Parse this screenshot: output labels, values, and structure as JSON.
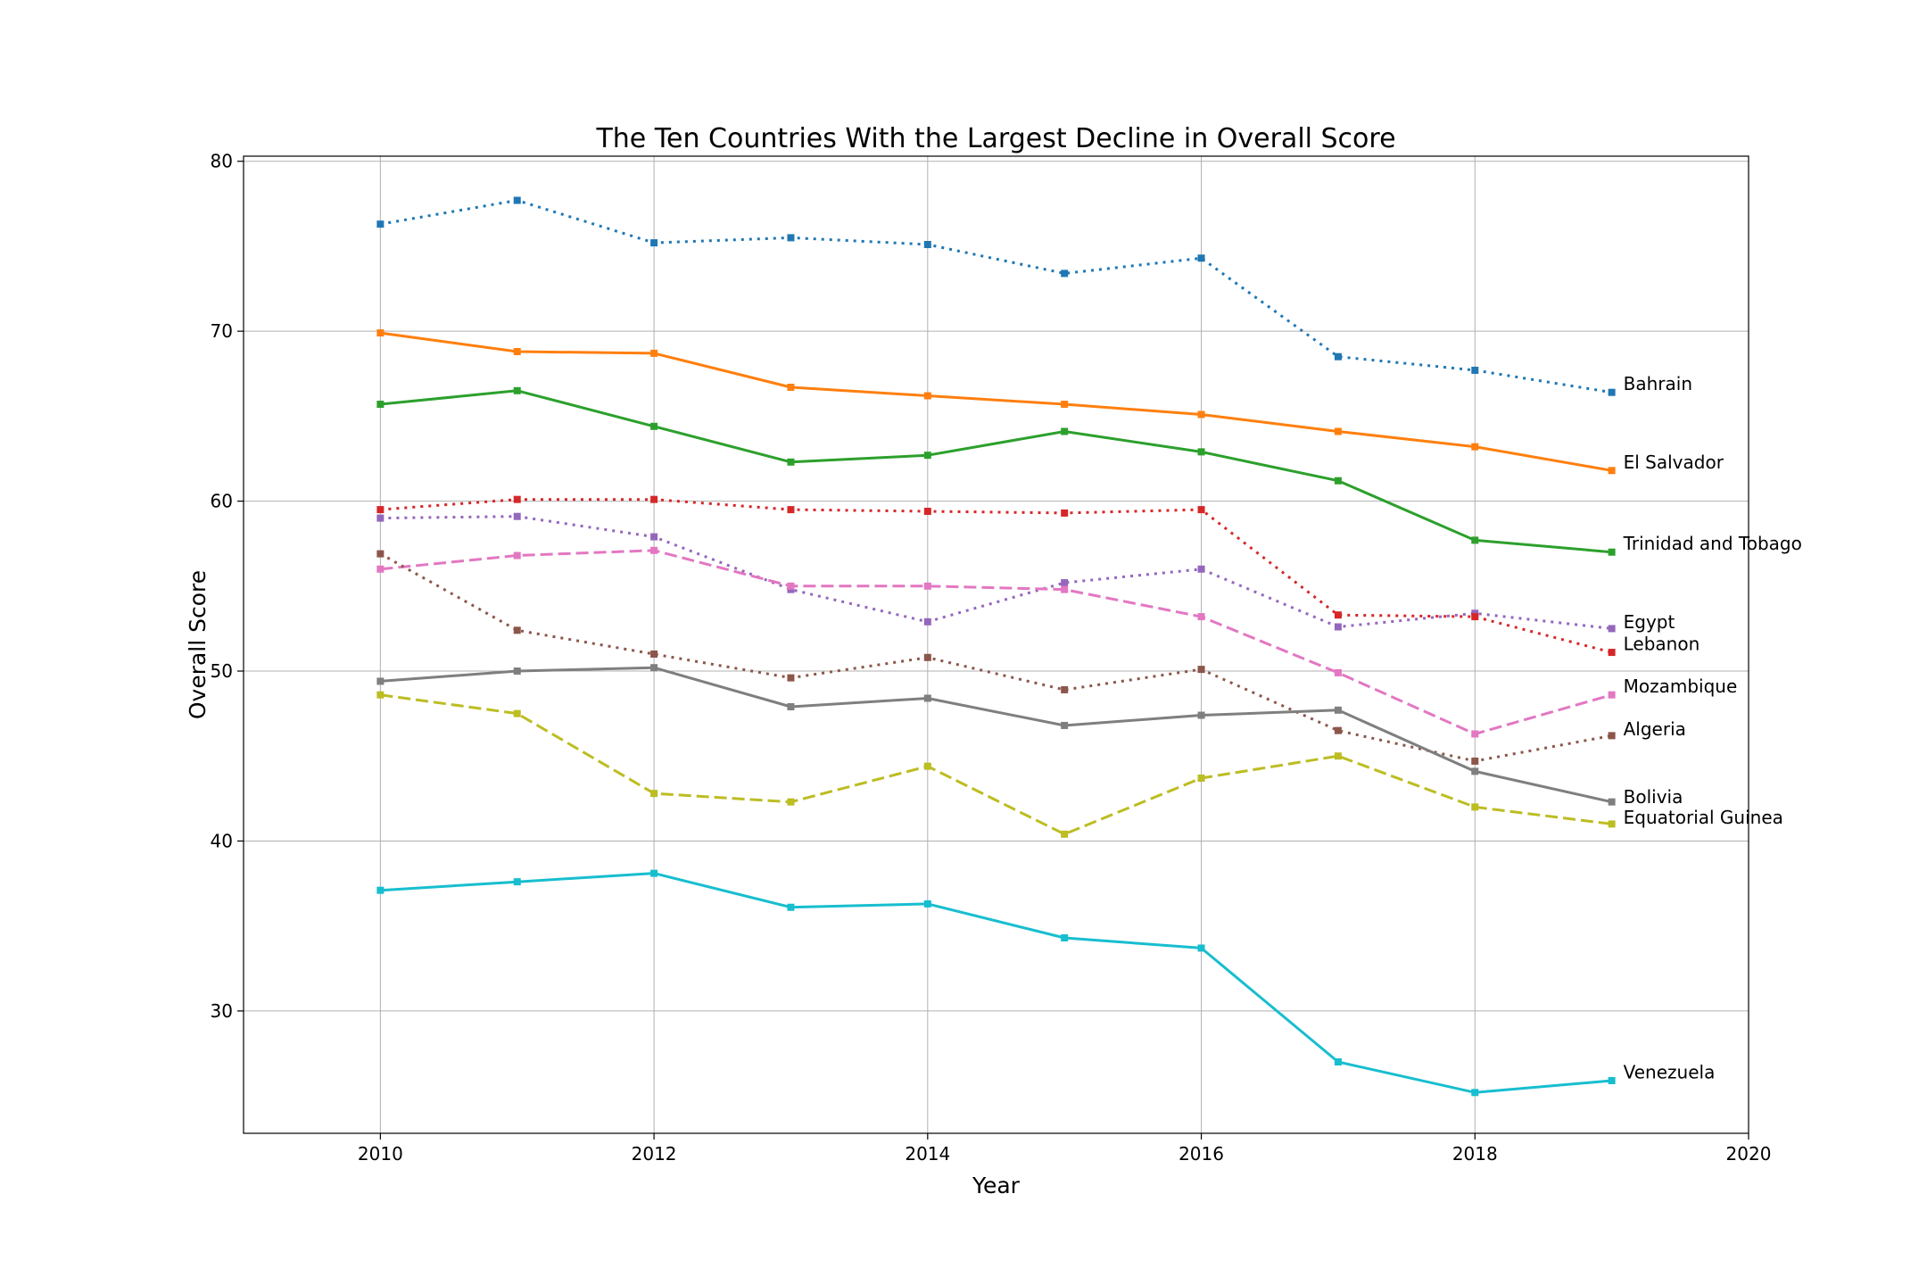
{
  "chart_data": {
    "type": "line",
    "title": "The Ten Countries With the Largest Decline in Overall Score",
    "xlabel": "Year",
    "ylabel": "Overall Score",
    "xlim": [
      2009,
      2020
    ],
    "ylim": [
      22.8,
      80.3
    ],
    "xticks": [
      2010,
      2012,
      2014,
      2016,
      2018,
      2020
    ],
    "yticks": [
      30,
      40,
      50,
      60,
      70,
      80
    ],
    "grid": true,
    "legend": "end-of-line labels",
    "x": [
      2010,
      2011,
      2012,
      2013,
      2014,
      2015,
      2016,
      2017,
      2018,
      2019
    ],
    "series": [
      {
        "name": "Bahrain",
        "color": "#1f77b4",
        "style": "dotted",
        "values": [
          76.3,
          77.7,
          75.2,
          75.5,
          75.1,
          73.4,
          74.3,
          68.5,
          67.7,
          66.4
        ],
        "label_y": 66.9
      },
      {
        "name": "El Salvador",
        "color": "#ff7f0e",
        "style": "solid",
        "values": [
          69.9,
          68.8,
          68.7,
          66.7,
          66.2,
          65.7,
          65.1,
          64.1,
          63.2,
          61.8
        ],
        "label_y": 62.3
      },
      {
        "name": "Trinidad and Tobago",
        "color": "#2ca02c",
        "style": "solid",
        "values": [
          65.7,
          66.5,
          64.4,
          62.3,
          62.7,
          64.1,
          62.9,
          61.2,
          57.7,
          57.0
        ],
        "label_y": 57.5
      },
      {
        "name": "Egypt",
        "color": "#9467bd",
        "style": "dotted",
        "values": [
          59.0,
          59.1,
          57.9,
          54.8,
          52.9,
          55.2,
          56.0,
          52.6,
          53.4,
          52.5
        ],
        "label_y": 52.9
      },
      {
        "name": "Lebanon",
        "color": "#d62728",
        "style": "dotted",
        "values": [
          59.5,
          60.1,
          60.1,
          59.5,
          59.4,
          59.3,
          59.5,
          53.3,
          53.2,
          51.1
        ],
        "label_y": 51.6
      },
      {
        "name": "Mozambique",
        "color": "#e377c2",
        "style": "dashed",
        "values": [
          56.0,
          56.8,
          57.1,
          55.0,
          55.0,
          54.8,
          53.2,
          49.9,
          46.3,
          48.6
        ],
        "label_y": 49.1
      },
      {
        "name": "Algeria",
        "color": "#8c564b",
        "style": "dotted",
        "values": [
          56.9,
          52.4,
          51.0,
          49.6,
          50.8,
          48.9,
          50.1,
          46.5,
          44.7,
          46.2
        ],
        "label_y": 46.6
      },
      {
        "name": "Bolivia",
        "color": "#7f7f7f",
        "style": "solid",
        "values": [
          49.4,
          50.0,
          50.2,
          47.9,
          48.4,
          46.8,
          47.4,
          47.7,
          44.1,
          42.3
        ],
        "label_y": 42.6
      },
      {
        "name": "Equatorial Guinea",
        "color": "#bcbd22",
        "style": "dashed",
        "values": [
          48.6,
          47.5,
          42.8,
          42.3,
          44.4,
          40.4,
          43.7,
          45.0,
          42.0,
          41.0
        ],
        "label_y": 41.4
      },
      {
        "name": "Venezuela",
        "color": "#17becf",
        "style": "solid",
        "values": [
          37.1,
          37.6,
          38.1,
          36.1,
          36.3,
          34.3,
          33.7,
          27.0,
          25.2,
          25.9
        ],
        "label_y": 26.4
      }
    ]
  }
}
